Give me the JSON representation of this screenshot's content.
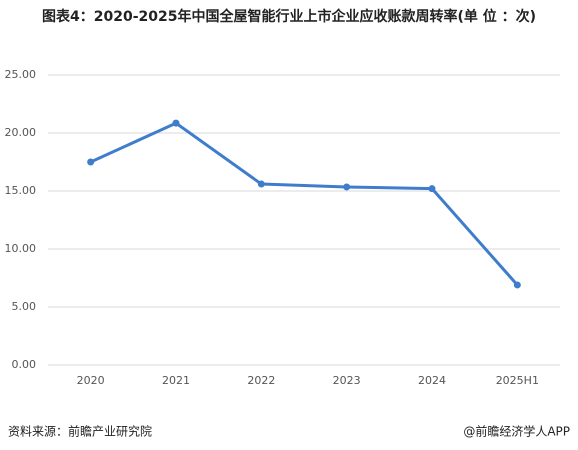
{
  "chart_data": {
    "type": "line",
    "title": "图表4：2020-2025年中国全屋智能行业上市企业应收账款周转率(单 位 ：次)",
    "categories": [
      "2020",
      "2021",
      "2022",
      "2023",
      "2024",
      "2025H1"
    ],
    "series": [
      {
        "name": "应收账款周转率",
        "color": "#3f7dcc",
        "values": [
          17.5,
          20.85,
          15.6,
          15.35,
          15.2,
          6.9
        ]
      }
    ],
    "ylim": [
      0,
      25
    ],
    "yticks": [
      {
        "value": 0,
        "label": "0.00"
      },
      {
        "value": 5,
        "label": "5.00"
      },
      {
        "value": 10,
        "label": "10.00"
      },
      {
        "value": 15,
        "label": "15.00"
      },
      {
        "value": 20,
        "label": "20.00"
      },
      {
        "value": 25,
        "label": "25.00"
      }
    ],
    "grid": true,
    "source": "资料来源：前瞻产业研究院",
    "credit": "@前瞻经济学人APP"
  }
}
